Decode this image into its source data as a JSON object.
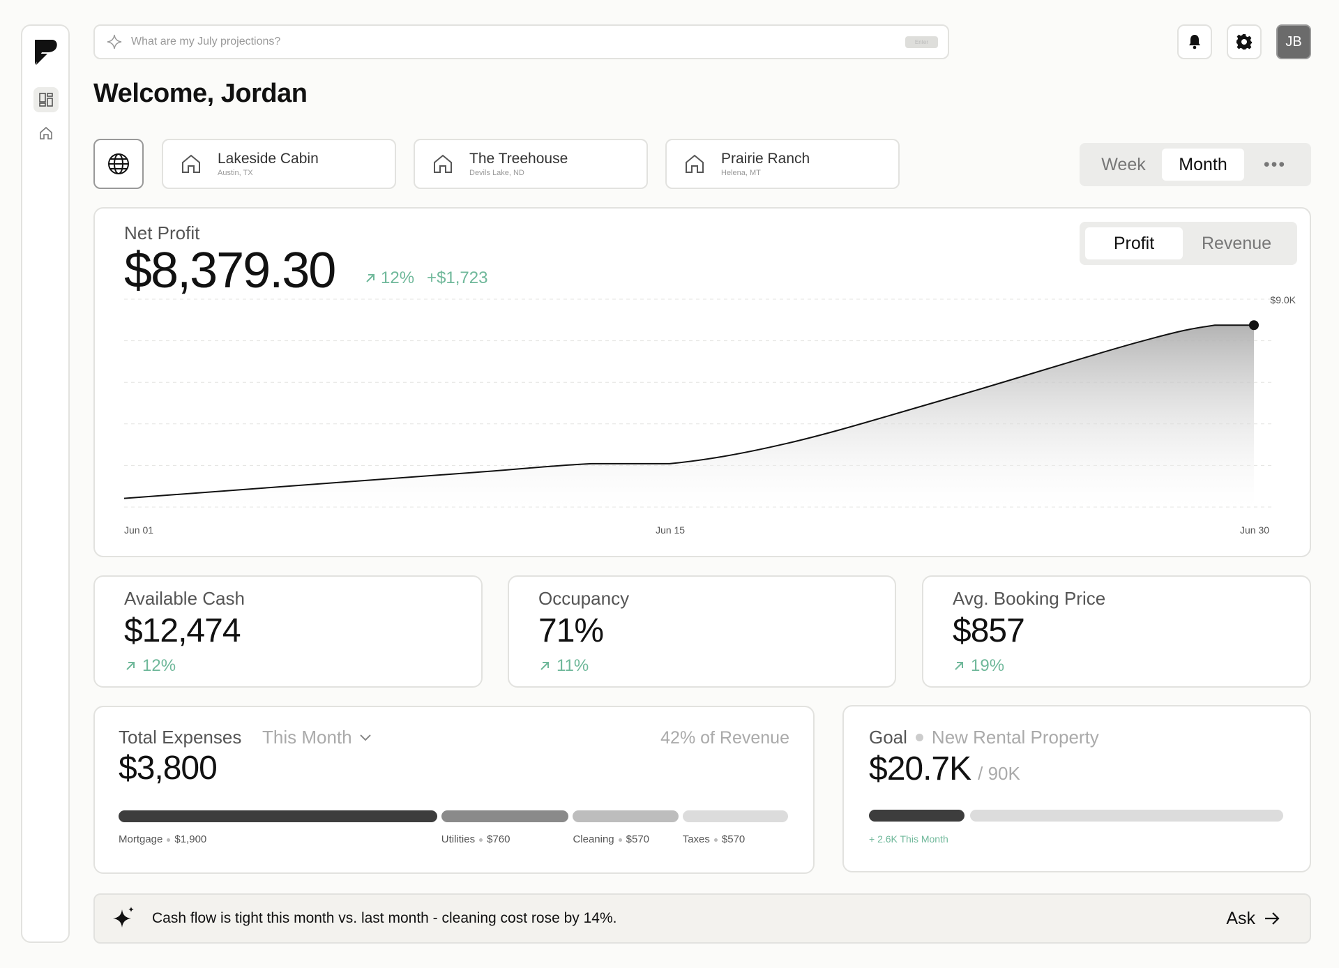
{
  "search": {
    "placeholder": "What are my July projections?",
    "kbd": "Enter"
  },
  "user": {
    "initials": "JB"
  },
  "welcome": "Welcome, Jordan",
  "properties": [
    {
      "name": "Lakeside Cabin",
      "location": "Austin, TX"
    },
    {
      "name": "The Treehouse",
      "location": "Devils Lake, ND"
    },
    {
      "name": "Prairie Ranch",
      "location": "Helena, MT"
    }
  ],
  "period": {
    "week": "Week",
    "month": "Month",
    "more": "•••",
    "selected": "Month"
  },
  "net_profit": {
    "label": "Net Profit",
    "value": "$8,379.30",
    "pct": "12%",
    "delta": "+$1,723",
    "toggle_profit": "Profit",
    "toggle_revenue": "Revenue",
    "selected": "Profit"
  },
  "chart_data": {
    "type": "area",
    "title": "Net Profit",
    "x": [
      "Jun 01",
      "Jun 05",
      "Jun 10",
      "Jun 13",
      "Jun 15",
      "Jun 18",
      "Jun 22",
      "Jun 27",
      "Jun 29",
      "Jun 30"
    ],
    "values": [
      2100,
      2500,
      3000,
      3300,
      3300,
      4000,
      5500,
      7500,
      8100,
      8100
    ],
    "x_tick_labels": [
      "Jun 01",
      "Jun 15",
      "Jun 30"
    ],
    "y_tick_labels": [
      "$9.0K"
    ],
    "ylim": [
      1800,
      9000
    ],
    "grid": true
  },
  "stats": [
    {
      "label": "Available Cash",
      "value": "$12,474",
      "pct": "12%"
    },
    {
      "label": "Occupancy",
      "value": "71%",
      "pct": "11%"
    },
    {
      "label": "Avg. Booking Price",
      "value": "$857",
      "pct": "19%"
    }
  ],
  "expenses": {
    "label": "Total Expenses",
    "period": "This Month",
    "share": "42% of Revenue",
    "value": "$3,800",
    "items": [
      {
        "name": "Mortgage",
        "amount": "$1,900",
        "value": 1900,
        "color": "#3d3d3d"
      },
      {
        "name": "Utilities",
        "amount": "$760",
        "value": 760,
        "color": "#8a8a8a"
      },
      {
        "name": "Cleaning",
        "amount": "$570",
        "value": 570,
        "color": "#bdbdbd"
      },
      {
        "name": "Taxes",
        "amount": "$570",
        "value": 570,
        "color": "#dcdcdc"
      }
    ]
  },
  "goal": {
    "label": "Goal",
    "name": "New Rental Property",
    "value": "$20.7K",
    "target": "/ 90K",
    "progress": 0.23,
    "note": "+ 2.6K This Month"
  },
  "insight": {
    "text": "Cash flow is tight this month vs. last month - cleaning cost rose by 14%.",
    "ask": "Ask"
  },
  "colors": {
    "positive": "#6fb89a",
    "accent_dark": "#111111"
  }
}
